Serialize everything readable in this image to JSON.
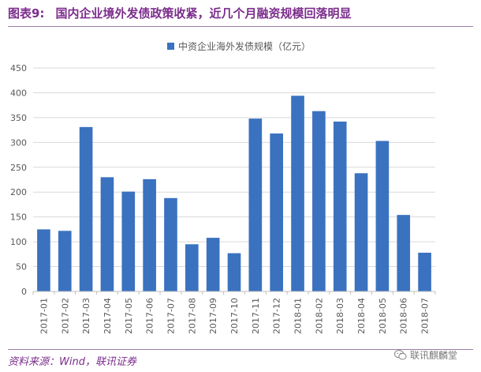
{
  "header": {
    "figure_label": "图表9:",
    "title": "国内企业境外发债政策收紧，近几个月融资规模回落明显"
  },
  "footer": {
    "source": "资料来源：Wind，联讯证券",
    "watermark": "联讯麒麟堂",
    "watermark_icon": "wechat-icon"
  },
  "colors": {
    "bar": "#3a72c0",
    "title": "#7b2d8c",
    "grid": "#d9d9d9",
    "axis": "#bfbfbf",
    "tick_text": "#595959"
  },
  "chart_data": {
    "type": "bar",
    "title": "",
    "legend": [
      "中资企业海外发债规模（亿元）"
    ],
    "legend_position": "top-center",
    "xlabel": "",
    "ylabel": "",
    "ylim": [
      0,
      450
    ],
    "yticks": [
      0,
      50,
      100,
      150,
      200,
      250,
      300,
      350,
      400,
      450
    ],
    "grid": true,
    "categories": [
      "2017-01",
      "2017-02",
      "2017-03",
      "2017-04",
      "2017-05",
      "2017-06",
      "2017-07",
      "2017-08",
      "2017-09",
      "2017-10",
      "2017-11",
      "2017-12",
      "2018-01",
      "2018-02",
      "2018-03",
      "2018-04",
      "2018-05",
      "2018-06",
      "2018-07"
    ],
    "series": [
      {
        "name": "中资企业海外发债规模（亿元）",
        "values": [
          125,
          122,
          331,
          230,
          201,
          226,
          188,
          95,
          108,
          77,
          348,
          318,
          394,
          363,
          342,
          238,
          303,
          154,
          78
        ]
      }
    ]
  }
}
